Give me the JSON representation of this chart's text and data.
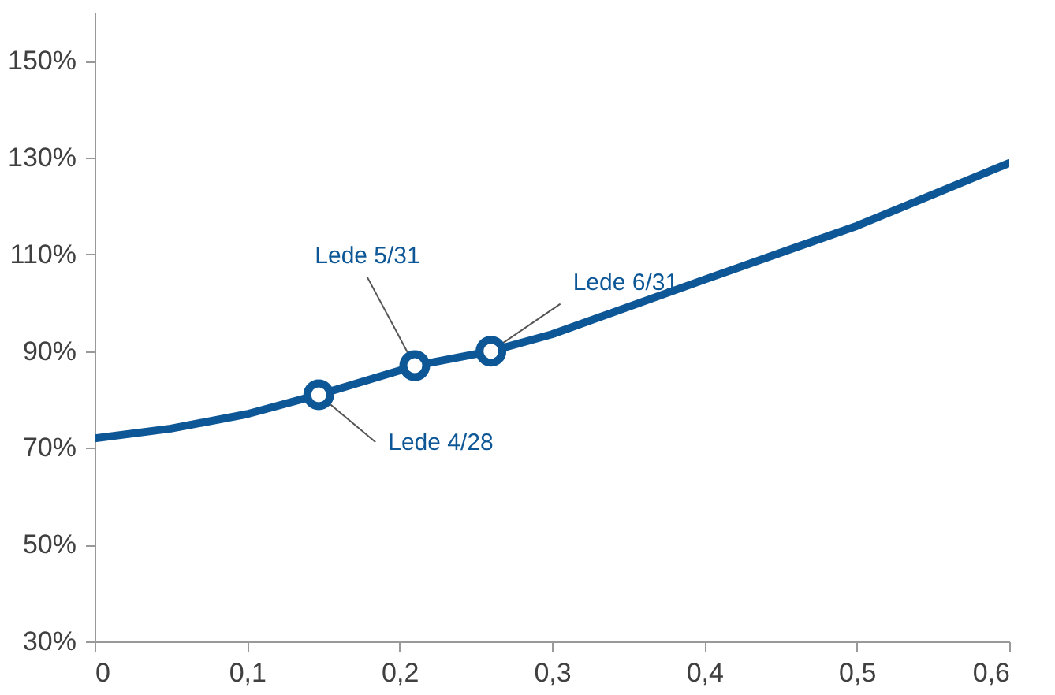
{
  "chart_data": {
    "type": "line",
    "x": [
      0,
      0.05,
      0.1,
      0.147,
      0.2,
      0.21,
      0.26,
      0.3,
      0.4,
      0.5,
      0.6
    ],
    "series": [
      {
        "color": "#0d5797",
        "marker": "none",
        "values": [
          72,
          74,
          77,
          81,
          86,
          87,
          90,
          93.5,
          104.8,
          115.9,
          128.9
        ]
      },
      {
        "type": "scatter",
        "color": "#0d5797",
        "marker": "circle",
        "x": [
          0.147,
          0.21,
          0.26
        ],
        "values": [
          81,
          87,
          90
        ]
      }
    ],
    "xlim": [
      0,
      0.6
    ],
    "xticks": [
      {
        "value": 0,
        "label": "0"
      },
      {
        "value": 0.1,
        "label": "0,1"
      },
      {
        "value": 0.2,
        "label": "0,2"
      },
      {
        "value": 0.3,
        "label": "0,3"
      },
      {
        "value": 0.4,
        "label": "0,4"
      },
      {
        "value": 0.5,
        "label": "0,5"
      },
      {
        "value": 0.6,
        "label": "0,6"
      }
    ],
    "ylim": [
      30,
      160
    ],
    "yticks": [
      {
        "value": 30,
        "label": "30%"
      },
      {
        "value": 50,
        "label": "50%"
      },
      {
        "value": 70,
        "label": "70%"
      },
      {
        "value": 90,
        "label": "90%"
      },
      {
        "value": 110,
        "label": "110%"
      },
      {
        "value": 130,
        "label": "130%"
      },
      {
        "value": 150,
        "label": "150%"
      }
    ],
    "annotations": [
      {
        "text": "Lede 4/28",
        "x": 0.147,
        "y": 81
      },
      {
        "text": "Lede 5/31",
        "x": 0.21,
        "y": 87
      },
      {
        "text": "Lede 6/31",
        "x": 0.26,
        "y": 90
      }
    ],
    "tick_labels": true
  }
}
